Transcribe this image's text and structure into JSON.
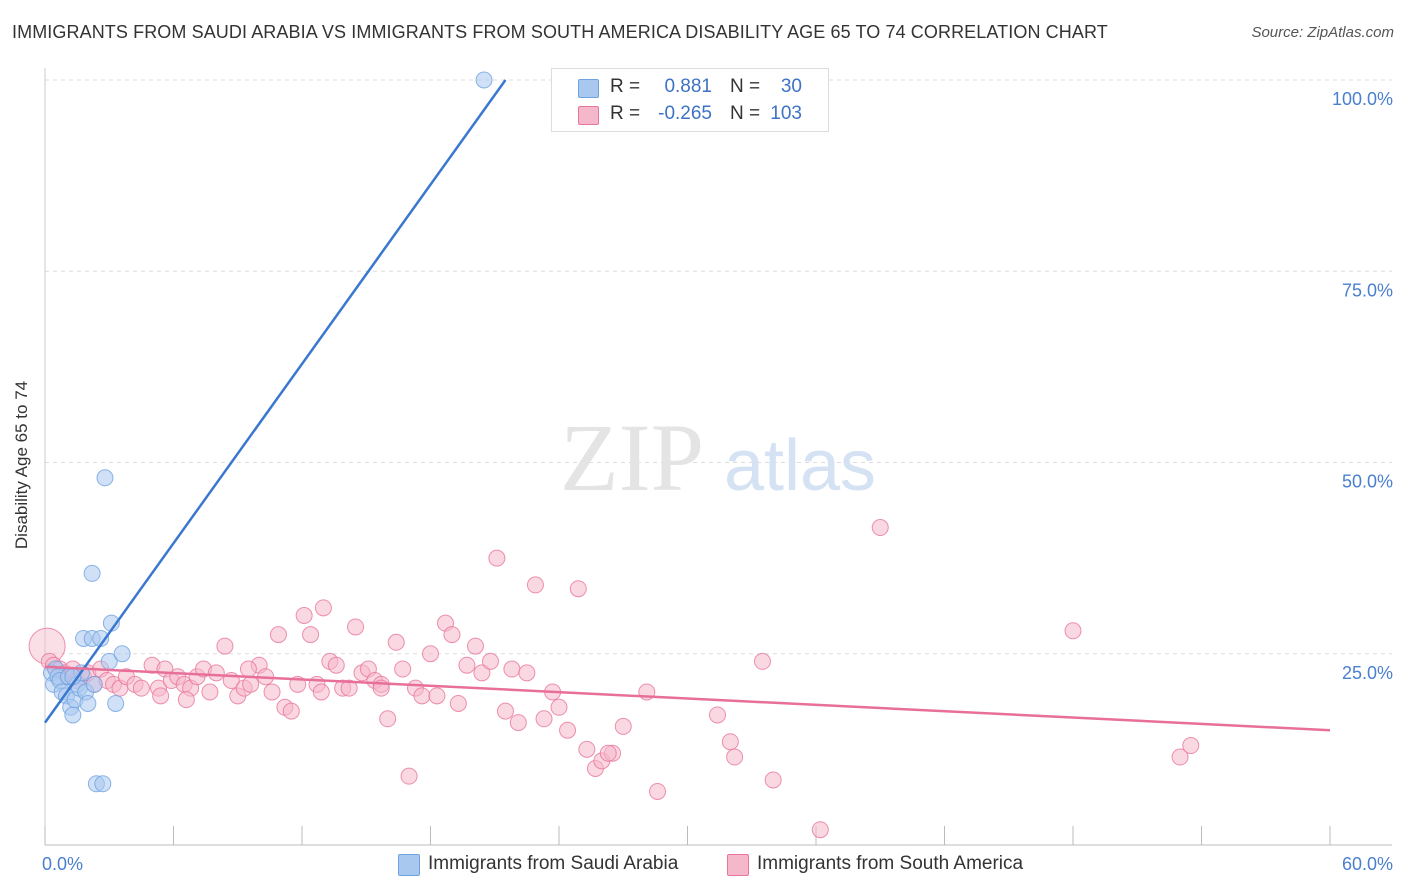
{
  "title": "IMMIGRANTS FROM SAUDI ARABIA VS IMMIGRANTS FROM SOUTH AMERICA DISABILITY AGE 65 TO 74 CORRELATION CHART",
  "source": "Source: ZipAtlas.com",
  "watermark": {
    "zip": "ZIP",
    "atlas": "atlas"
  },
  "stats": [
    {
      "r_label": "R =",
      "r_value": "0.881",
      "n_label": "N =",
      "n_value": "30",
      "color": "#a9c8f0"
    },
    {
      "r_label": "R =",
      "r_value": "-0.265",
      "n_label": "N =",
      "n_value": "103",
      "color": "#f5b8ca"
    }
  ],
  "legend": [
    {
      "label": "Immigrants from Saudi Arabia",
      "color": "#a9c8f0"
    },
    {
      "label": "Immigrants from South America",
      "color": "#f5b8ca"
    }
  ],
  "chart_data": {
    "type": "scatter",
    "title": "IMMIGRANTS FROM SAUDI ARABIA VS IMMIGRANTS FROM SOUTH AMERICA DISABILITY AGE 65 TO 74 CORRELATION CHART",
    "xlabel": "",
    "ylabel": "Disability Age 65 to 74",
    "xlim": [
      0,
      60
    ],
    "ylim": [
      0,
      100
    ],
    "x_tick_labels": [
      "0.0%",
      "60.0%"
    ],
    "y_ticks": [
      25,
      50,
      75,
      100
    ],
    "y_tick_labels": [
      "25.0%",
      "50.0%",
      "75.0%",
      "100.0%"
    ],
    "grid": true,
    "series": [
      {
        "name": "Immigrants from Saudi Arabia",
        "color": "#6fa3e0",
        "fill": "#a9c8f0",
        "trend": {
          "x": [
            0,
            21.5
          ],
          "y": [
            16.0,
            100
          ]
        },
        "points": [
          [
            0.3,
            22.5
          ],
          [
            0.4,
            21.0
          ],
          [
            0.5,
            23.0
          ],
          [
            0.6,
            22.0
          ],
          [
            0.7,
            21.5
          ],
          [
            0.8,
            20.0
          ],
          [
            1.0,
            19.5
          ],
          [
            1.1,
            22.0
          ],
          [
            1.2,
            18.0
          ],
          [
            1.3,
            17.0
          ],
          [
            1.4,
            19.0
          ],
          [
            1.5,
            21.0
          ],
          [
            1.6,
            20.5
          ],
          [
            1.7,
            22.5
          ],
          [
            1.8,
            27.0
          ],
          [
            1.9,
            20.0
          ],
          [
            2.0,
            18.5
          ],
          [
            2.2,
            27.0
          ],
          [
            2.3,
            21.0
          ],
          [
            2.4,
            8.0
          ],
          [
            2.6,
            27.0
          ],
          [
            2.7,
            8.0
          ],
          [
            2.8,
            48.0
          ],
          [
            3.0,
            24.0
          ],
          [
            3.1,
            29.0
          ],
          [
            3.3,
            18.5
          ],
          [
            3.6,
            25.0
          ],
          [
            2.2,
            35.5
          ],
          [
            1.3,
            22.0
          ],
          [
            20.5,
            100.0
          ]
        ]
      },
      {
        "name": "Immigrants from South America",
        "color": "#e8759c",
        "fill": "#f5b8ca",
        "trend": {
          "x": [
            0,
            60
          ],
          "y": [
            23.3,
            15.0
          ]
        },
        "points": [
          [
            0.1,
            26.0
          ],
          [
            0.2,
            24.0
          ],
          [
            0.4,
            23.5
          ],
          [
            0.7,
            23.0
          ],
          [
            0.9,
            22.5
          ],
          [
            1.1,
            22.0
          ],
          [
            1.3,
            23.0
          ],
          [
            1.5,
            21.5
          ],
          [
            1.8,
            22.0
          ],
          [
            2.0,
            22.5
          ],
          [
            2.3,
            21.0
          ],
          [
            2.6,
            23.0
          ],
          [
            2.9,
            21.5
          ],
          [
            3.2,
            21.0
          ],
          [
            3.5,
            20.5
          ],
          [
            3.8,
            22.0
          ],
          [
            4.2,
            21.0
          ],
          [
            4.5,
            20.5
          ],
          [
            5.0,
            23.5
          ],
          [
            5.3,
            20.5
          ],
          [
            5.6,
            23.0
          ],
          [
            5.9,
            21.5
          ],
          [
            6.2,
            22.0
          ],
          [
            6.5,
            21.0
          ],
          [
            6.8,
            20.5
          ],
          [
            7.1,
            22.0
          ],
          [
            7.4,
            23.0
          ],
          [
            7.7,
            20.0
          ],
          [
            8.0,
            22.5
          ],
          [
            8.4,
            26.0
          ],
          [
            8.7,
            21.5
          ],
          [
            9.0,
            19.5
          ],
          [
            9.3,
            20.5
          ],
          [
            9.6,
            21.0
          ],
          [
            10.0,
            23.5
          ],
          [
            10.3,
            22.0
          ],
          [
            10.6,
            20.0
          ],
          [
            10.9,
            27.5
          ],
          [
            11.2,
            18.0
          ],
          [
            11.5,
            17.5
          ],
          [
            11.8,
            21.0
          ],
          [
            12.1,
            30.0
          ],
          [
            12.4,
            27.5
          ],
          [
            12.7,
            21.0
          ],
          [
            13.0,
            31.0
          ],
          [
            13.3,
            24.0
          ],
          [
            13.6,
            23.5
          ],
          [
            13.9,
            20.5
          ],
          [
            14.2,
            20.5
          ],
          [
            14.5,
            28.5
          ],
          [
            14.8,
            22.5
          ],
          [
            15.1,
            23.0
          ],
          [
            15.4,
            21.5
          ],
          [
            15.7,
            21.0
          ],
          [
            16.0,
            16.5
          ],
          [
            16.4,
            26.5
          ],
          [
            16.7,
            23.0
          ],
          [
            17.0,
            9.0
          ],
          [
            17.3,
            20.5
          ],
          [
            17.6,
            19.5
          ],
          [
            18.0,
            25.0
          ],
          [
            18.3,
            19.5
          ],
          [
            18.7,
            29.0
          ],
          [
            19.0,
            27.5
          ],
          [
            19.3,
            18.5
          ],
          [
            19.7,
            23.5
          ],
          [
            20.1,
            26.0
          ],
          [
            20.4,
            22.5
          ],
          [
            20.8,
            24.0
          ],
          [
            21.1,
            37.5
          ],
          [
            21.5,
            17.5
          ],
          [
            21.8,
            23.0
          ],
          [
            22.1,
            16.0
          ],
          [
            22.5,
            22.5
          ],
          [
            22.9,
            34.0
          ],
          [
            23.3,
            16.5
          ],
          [
            23.7,
            20.0
          ],
          [
            24.0,
            18.0
          ],
          [
            24.4,
            15.0
          ],
          [
            24.9,
            33.5
          ],
          [
            25.3,
            12.5
          ],
          [
            25.7,
            10.0
          ],
          [
            26.0,
            11.0
          ],
          [
            26.5,
            12.0
          ],
          [
            27.0,
            15.5
          ],
          [
            28.1,
            20.0
          ],
          [
            28.6,
            7.0
          ],
          [
            31.4,
            17.0
          ],
          [
            32.0,
            13.5
          ],
          [
            32.2,
            11.5
          ],
          [
            33.5,
            24.0
          ],
          [
            34.0,
            8.5
          ],
          [
            36.2,
            2.0
          ],
          [
            39.0,
            41.5
          ],
          [
            48.0,
            28.0
          ],
          [
            53.0,
            11.5
          ],
          [
            53.5,
            13.0
          ],
          [
            5.4,
            19.5
          ],
          [
            6.6,
            19.0
          ],
          [
            9.5,
            23.0
          ],
          [
            12.9,
            20.0
          ],
          [
            15.7,
            20.5
          ],
          [
            26.3,
            12.0
          ]
        ]
      }
    ]
  }
}
